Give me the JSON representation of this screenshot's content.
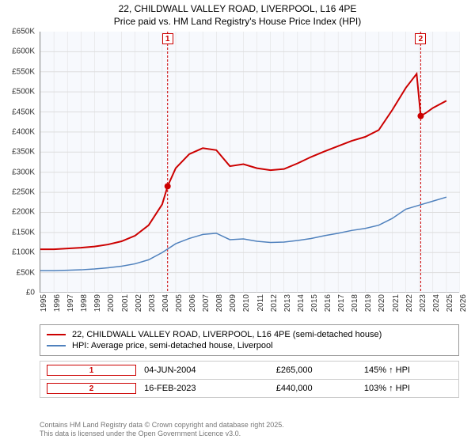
{
  "title_line1": "22, CHILDWALL VALLEY ROAD, LIVERPOOL, L16 4PE",
  "title_line2": "Price paid vs. HM Land Registry's House Price Index (HPI)",
  "chart": {
    "type": "line",
    "background_color": "#f0f4fb",
    "plot_bg_opacity": 0.5,
    "ylim": [
      0,
      650000
    ],
    "ytick_step": 50000,
    "ytick_labels": [
      "£0",
      "£50K",
      "£100K",
      "£150K",
      "£200K",
      "£250K",
      "£300K",
      "£350K",
      "£400K",
      "£450K",
      "£500K",
      "£550K",
      "£600K",
      "£650K"
    ],
    "xlim": [
      1995,
      2026
    ],
    "xticks": [
      1995,
      1996,
      1997,
      1998,
      1999,
      2000,
      2001,
      2002,
      2003,
      2004,
      2005,
      2006,
      2007,
      2008,
      2009,
      2010,
      2011,
      2012,
      2013,
      2014,
      2015,
      2016,
      2017,
      2018,
      2019,
      2020,
      2021,
      2022,
      2023,
      2024,
      2025,
      2026
    ],
    "grid_color": "#dddddd",
    "series": [
      {
        "name": "22, CHILDWALL VALLEY ROAD, LIVERPOOL, L16 4PE (semi-detached house)",
        "color": "#cc0000",
        "line_width": 2,
        "points": [
          [
            1995,
            108000
          ],
          [
            1996,
            108000
          ],
          [
            1997,
            110000
          ],
          [
            1998,
            112000
          ],
          [
            1999,
            115000
          ],
          [
            2000,
            120000
          ],
          [
            2001,
            128000
          ],
          [
            2002,
            142000
          ],
          [
            2003,
            168000
          ],
          [
            2004,
            220000
          ],
          [
            2004.4,
            265000
          ],
          [
            2005,
            310000
          ],
          [
            2006,
            345000
          ],
          [
            2007,
            360000
          ],
          [
            2008,
            355000
          ],
          [
            2009,
            315000
          ],
          [
            2010,
            320000
          ],
          [
            2011,
            310000
          ],
          [
            2012,
            305000
          ],
          [
            2013,
            308000
          ],
          [
            2014,
            322000
          ],
          [
            2015,
            338000
          ],
          [
            2016,
            352000
          ],
          [
            2017,
            365000
          ],
          [
            2018,
            378000
          ],
          [
            2019,
            388000
          ],
          [
            2020,
            405000
          ],
          [
            2021,
            455000
          ],
          [
            2022,
            510000
          ],
          [
            2022.8,
            545000
          ],
          [
            2023.1,
            440000
          ],
          [
            2023.5,
            448000
          ],
          [
            2024,
            460000
          ],
          [
            2025,
            478000
          ]
        ]
      },
      {
        "name": "HPI: Average price, semi-detached house, Liverpool",
        "color": "#4f81bd",
        "line_width": 1.5,
        "points": [
          [
            1995,
            55000
          ],
          [
            1996,
            55000
          ],
          [
            1997,
            56000
          ],
          [
            1998,
            57000
          ],
          [
            1999,
            59000
          ],
          [
            2000,
            62000
          ],
          [
            2001,
            66000
          ],
          [
            2002,
            72000
          ],
          [
            2003,
            82000
          ],
          [
            2004,
            100000
          ],
          [
            2005,
            122000
          ],
          [
            2006,
            135000
          ],
          [
            2007,
            145000
          ],
          [
            2008,
            148000
          ],
          [
            2009,
            132000
          ],
          [
            2010,
            134000
          ],
          [
            2011,
            128000
          ],
          [
            2012,
            125000
          ],
          [
            2013,
            126000
          ],
          [
            2014,
            130000
          ],
          [
            2015,
            135000
          ],
          [
            2016,
            142000
          ],
          [
            2017,
            148000
          ],
          [
            2018,
            155000
          ],
          [
            2019,
            160000
          ],
          [
            2020,
            168000
          ],
          [
            2021,
            185000
          ],
          [
            2022,
            208000
          ],
          [
            2023,
            218000
          ],
          [
            2024,
            228000
          ],
          [
            2025,
            238000
          ]
        ]
      }
    ],
    "markers": [
      {
        "label": "1",
        "x": 2004.4,
        "y": 265000,
        "box_color": "#cc0000",
        "vline": true
      },
      {
        "label": "2",
        "x": 2023.1,
        "y": 440000,
        "box_color": "#cc0000",
        "vline": true
      }
    ]
  },
  "legend": [
    {
      "color": "#cc0000",
      "label": "22, CHILDWALL VALLEY ROAD, LIVERPOOL, L16 4PE (semi-detached house)",
      "width": 2
    },
    {
      "color": "#4f81bd",
      "label": "HPI: Average price, semi-detached house, Liverpool",
      "width": 1.5
    }
  ],
  "sales": [
    {
      "num": "1",
      "date": "04-JUN-2004",
      "price": "£265,000",
      "hpi": "145% ↑ HPI",
      "box_color": "#cc0000"
    },
    {
      "num": "2",
      "date": "16-FEB-2023",
      "price": "£440,000",
      "hpi": "103% ↑ HPI",
      "box_color": "#cc0000"
    }
  ],
  "footnote_line1": "Contains HM Land Registry data © Crown copyright and database right 2025.",
  "footnote_line2": "This data is licensed under the Open Government Licence v3.0."
}
